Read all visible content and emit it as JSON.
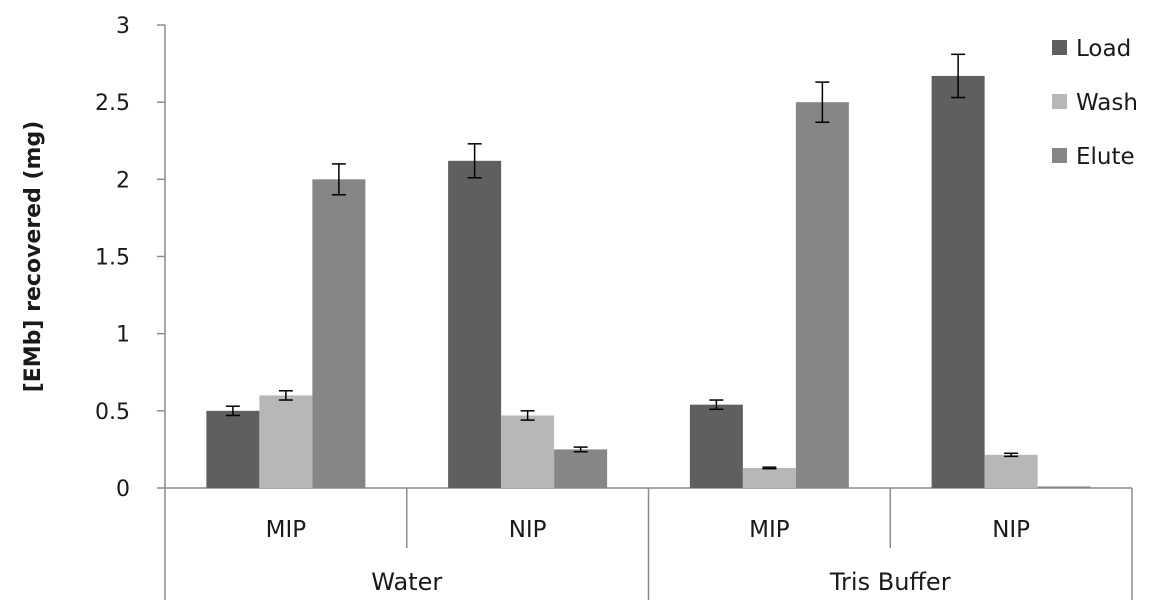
{
  "chart_data": {
    "type": "bar",
    "title": "",
    "ylabel": "[EMb] recovered (mg)",
    "xlabel": "",
    "ylim": [
      0,
      3
    ],
    "yticks": [
      0,
      0.5,
      1,
      1.5,
      2,
      2.5,
      3
    ],
    "ytick_labels": [
      "0",
      "0.5",
      "1",
      "1.5",
      "2",
      "2.5",
      "3"
    ],
    "groups": [
      {
        "label": "Water",
        "categories": [
          "MIP",
          "NIP"
        ]
      },
      {
        "label": "Tris Buffer",
        "categories": [
          "MIP",
          "NIP"
        ]
      }
    ],
    "series": [
      {
        "name": "Load",
        "color": "#5f5f5f",
        "values": [
          0.5,
          2.12,
          0.54,
          2.67
        ],
        "errors": [
          0.03,
          0.11,
          0.03,
          0.14
        ]
      },
      {
        "name": "Wash",
        "color": "#b7b7b7",
        "values": [
          0.6,
          0.47,
          0.13,
          0.215
        ],
        "errors": [
          0.03,
          0.03,
          0.005,
          0.01
        ]
      },
      {
        "name": "Elute",
        "color": "#868686",
        "values": [
          2.0,
          0.25,
          2.5,
          0.01
        ],
        "errors": [
          0.1,
          0.015,
          0.13,
          0.0
        ]
      }
    ],
    "legend_position": "top-right",
    "grid": false
  }
}
